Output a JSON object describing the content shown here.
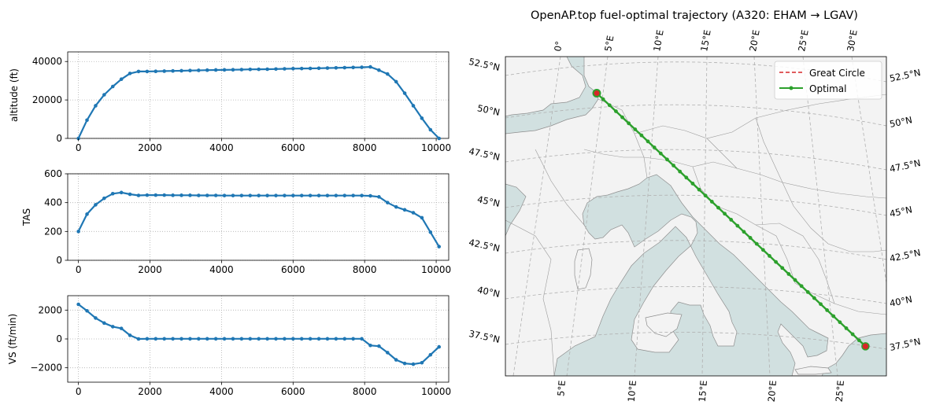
{
  "figure": {
    "map_title": "OpenAP.top fuel-optimal trajectory (A320: EHAM → LGAV)"
  },
  "colors": {
    "series": "#1f77b4",
    "optimal": "#2ca02c",
    "great_circle": "#d62728",
    "ocean": "#d1e0e0",
    "land": "#f3f3f3",
    "border": "#9a9a9a",
    "grid": "#b0b0b0"
  },
  "chart_data": [
    {
      "type": "line",
      "id": "altitude",
      "ylabel": "altitude (ft)",
      "xlim": [
        -300,
        10350
      ],
      "ylim": [
        0,
        45000
      ],
      "xticks": [
        0,
        2000,
        4000,
        6000,
        8000,
        10000
      ],
      "yticks": [
        0,
        20000,
        40000
      ],
      "grid": true,
      "x": [
        0,
        240,
        480,
        720,
        960,
        1200,
        1440,
        1680,
        1920,
        2160,
        2400,
        2640,
        2880,
        3120,
        3360,
        3600,
        3840,
        4080,
        4320,
        4560,
        4800,
        5040,
        5280,
        5520,
        5760,
        6000,
        6240,
        6480,
        6720,
        6960,
        7200,
        7440,
        7680,
        7920,
        8160,
        8400,
        8640,
        8880,
        9120,
        9360,
        9600,
        9840,
        10080
      ],
      "y": [
        0,
        9500,
        17000,
        22700,
        27000,
        30800,
        33800,
        34800,
        34800,
        34900,
        35000,
        35100,
        35200,
        35300,
        35400,
        35500,
        35600,
        35650,
        35700,
        35800,
        35900,
        35950,
        36000,
        36100,
        36200,
        36300,
        36350,
        36400,
        36500,
        36600,
        36700,
        36800,
        36900,
        37000,
        37200,
        35500,
        33500,
        29500,
        23500,
        17000,
        10500,
        4500,
        0
      ]
    },
    {
      "type": "line",
      "id": "tas",
      "ylabel": "TAS",
      "xlim": [
        -300,
        10350
      ],
      "ylim": [
        0,
        600
      ],
      "xticks": [
        0,
        2000,
        4000,
        6000,
        8000,
        10000
      ],
      "yticks": [
        0,
        200,
        400,
        600
      ],
      "grid": true,
      "x": [
        0,
        240,
        480,
        720,
        960,
        1200,
        1440,
        1680,
        1920,
        2160,
        2400,
        2640,
        2880,
        3120,
        3360,
        3600,
        3840,
        4080,
        4320,
        4560,
        4800,
        5040,
        5280,
        5520,
        5760,
        6000,
        6240,
        6480,
        6720,
        6960,
        7200,
        7440,
        7680,
        7920,
        8160,
        8400,
        8640,
        8880,
        9120,
        9360,
        9600,
        9840,
        10080
      ],
      "y": [
        200,
        320,
        385,
        430,
        462,
        470,
        458,
        450,
        452,
        452,
        452,
        451,
        451,
        451,
        450,
        450,
        450,
        449,
        449,
        449,
        449,
        449,
        449,
        449,
        449,
        449,
        449,
        449,
        449,
        449,
        449,
        449,
        449,
        449,
        447,
        440,
        400,
        370,
        350,
        330,
        295,
        195,
        95
      ]
    },
    {
      "type": "line",
      "id": "vs",
      "ylabel": "VS (ft/min)",
      "xlim": [
        -300,
        10350
      ],
      "ylim": [
        -3000,
        3000
      ],
      "xticks": [
        0,
        2000,
        4000,
        6000,
        8000,
        10000
      ],
      "yticks": [
        -2000,
        0,
        2000
      ],
      "grid": true,
      "x": [
        0,
        240,
        480,
        720,
        960,
        1200,
        1440,
        1680,
        1920,
        2160,
        2400,
        2640,
        2880,
        3120,
        3360,
        3600,
        3840,
        4080,
        4320,
        4560,
        4800,
        5040,
        5280,
        5520,
        5760,
        6000,
        6240,
        6480,
        6720,
        6960,
        7200,
        7440,
        7680,
        7920,
        8160,
        8400,
        8640,
        8880,
        9120,
        9360,
        9600,
        9840,
        10080
      ],
      "y": [
        2400,
        1950,
        1450,
        1100,
        850,
        730,
        250,
        0,
        10,
        10,
        10,
        10,
        10,
        10,
        10,
        10,
        10,
        10,
        10,
        10,
        10,
        10,
        10,
        10,
        10,
        10,
        10,
        10,
        10,
        10,
        10,
        10,
        10,
        10,
        -450,
        -500,
        -950,
        -1450,
        -1700,
        -1750,
        -1650,
        -1100,
        -550
      ]
    },
    {
      "type": "map",
      "id": "trajectory",
      "title": "OpenAP.top fuel-optimal trajectory (A320: EHAM → LGAV)",
      "legend": [
        "Great Circle",
        "Optimal"
      ],
      "legend_placement": "top-right",
      "lon_labels_top": [
        "0°",
        "5°E",
        "10°E",
        "15°E",
        "20°E",
        "25°E",
        "30°E"
      ],
      "lon_labels_bottom": [
        "5°E",
        "10°E",
        "15°E",
        "20°E",
        "25°E"
      ],
      "lat_labels": [
        "52.5°N",
        "50°N",
        "47.5°N",
        "45°N",
        "42.5°N",
        "40°N",
        "37.5°N"
      ],
      "origin": "EHAM",
      "destination": "LGAV",
      "route": {
        "from": [
          4.76,
          52.31
        ],
        "to": [
          23.94,
          37.94
        ]
      }
    }
  ]
}
